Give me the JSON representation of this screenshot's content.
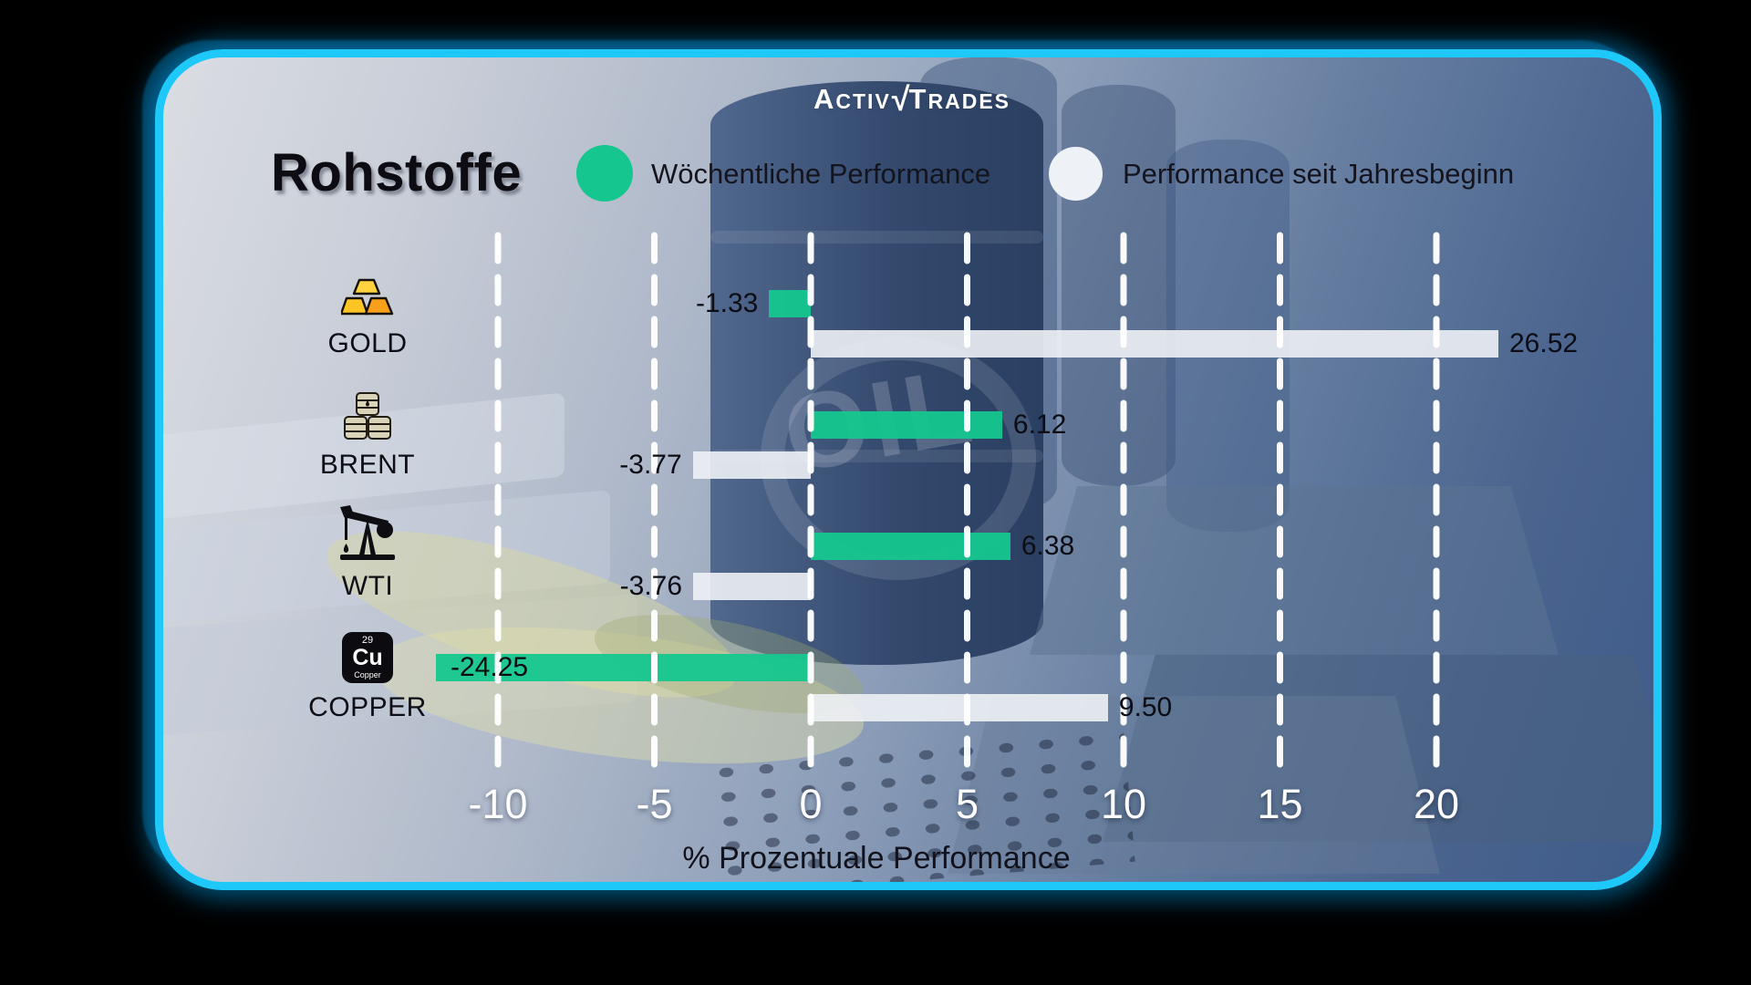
{
  "brand": {
    "part_a": "A",
    "part_ctiv": "CTIV",
    "check": "√",
    "part_t": "T",
    "part_rades": "RADES"
  },
  "header": {
    "title": "Rohstoffe"
  },
  "legend": {
    "weekly_label": "Wöchentliche Performance",
    "ytd_label": "Performance seit Jahresbeginn"
  },
  "background": {
    "oil_text": "OIL"
  },
  "colors": {
    "weekly": "#15c78e",
    "ytd": "#eef1f5",
    "accent_border": "#1ec8f8",
    "value_text": "#0c0c14",
    "axis_text": "#ffffff"
  },
  "icons": {
    "copper": {
      "number": "29",
      "symbol": "Cu",
      "name": "Copper"
    }
  },
  "chart_data": {
    "type": "bar",
    "orientation": "horizontal",
    "title": "Rohstoffe",
    "categories": [
      "GOLD",
      "BRENT",
      "WTI",
      "COPPER"
    ],
    "series": [
      {
        "name": "Wöchentliche Performance",
        "color": "#15c78e",
        "values": [
          -1.33,
          6.12,
          6.38,
          -24.25
        ]
      },
      {
        "name": "Performance seit Jahresbeginn",
        "color": "#eef1f5",
        "values": [
          26.52,
          -3.77,
          -3.76,
          9.5
        ]
      }
    ],
    "value_labels": {
      "weekly": [
        "-1.33",
        "6.12",
        "6.38",
        "-24.25"
      ],
      "ytd": [
        "26.52",
        "-3.77",
        "-3.76",
        "9.50"
      ]
    },
    "x_ticks": [
      -10,
      -5,
      0,
      5,
      10,
      15,
      20
    ],
    "x_tick_labels": [
      "-10",
      "-5",
      "0",
      "5",
      "10",
      "15",
      "20"
    ],
    "xlabel": "% Prozentuale Performance",
    "xlim": [
      -12,
      22
    ],
    "grid": "dashed-vertical-white",
    "legend_position": "top",
    "row_icons": [
      "gold-bars",
      "oil-barrels",
      "pump-jack",
      "copper-element"
    ]
  }
}
